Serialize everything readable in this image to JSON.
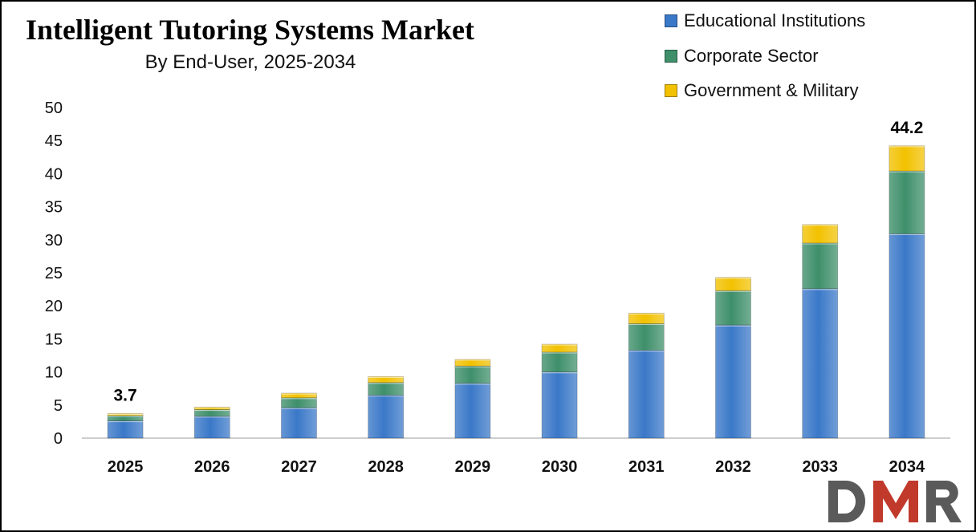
{
  "chart_data": {
    "type": "bar",
    "stacked": true,
    "title": "Intelligent Tutoring Systems Market",
    "subtitle": "By End-User, 2025-2034",
    "xlabel": "",
    "ylabel": "",
    "categories": [
      "2025",
      "2026",
      "2027",
      "2028",
      "2029",
      "2030",
      "2031",
      "2032",
      "2033",
      "2034"
    ],
    "ylim": [
      0,
      50
    ],
    "yticks": [
      0,
      5,
      10,
      15,
      20,
      25,
      30,
      35,
      40,
      45,
      50
    ],
    "series": [
      {
        "name": "Educational Institutions",
        "color": "#3a78c8",
        "values": [
          2.6,
          3.3,
          4.6,
          6.5,
          8.3,
          10.0,
          13.3,
          17.1,
          22.6,
          30.9
        ]
      },
      {
        "name": "Corporate Sector",
        "color": "#3e8f6a",
        "values": [
          0.8,
          1.0,
          1.5,
          1.9,
          2.6,
          3.0,
          4.0,
          5.2,
          6.9,
          9.5
        ]
      },
      {
        "name": "Government & Military",
        "color": "#f2c100",
        "values": [
          0.3,
          0.4,
          0.7,
          0.9,
          1.0,
          1.2,
          1.6,
          2.0,
          2.8,
          3.8
        ]
      }
    ],
    "data_labels": [
      {
        "category": "2025",
        "text": "3.7"
      },
      {
        "category": "2034",
        "text": "44.2"
      }
    ],
    "legend_position": "top-right",
    "grid": false
  },
  "logo": {
    "text": "DMR",
    "colors": [
      "#5a5a5a",
      "#c0392b"
    ]
  }
}
